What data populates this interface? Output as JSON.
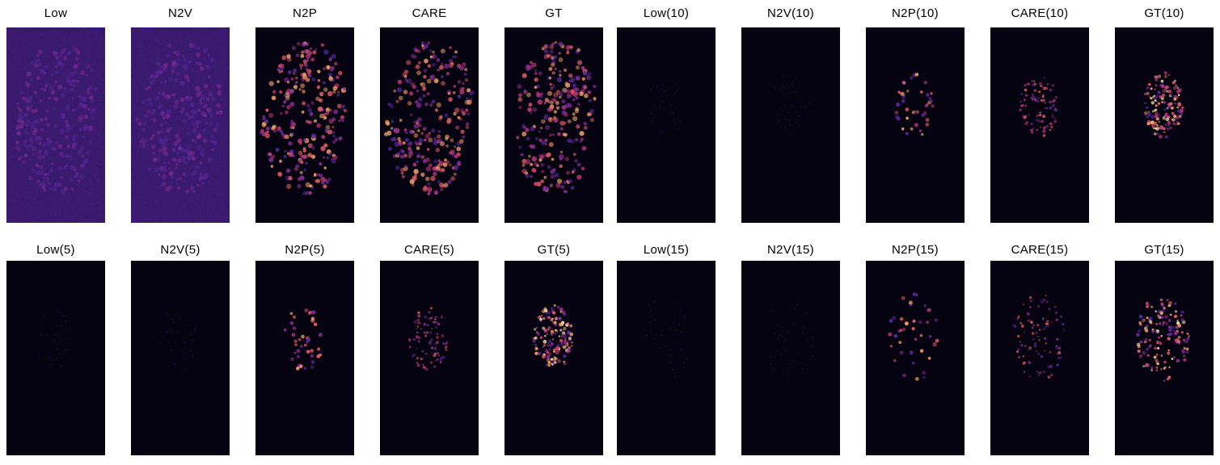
{
  "panels": [
    {
      "title": "Low",
      "kind": "low_full"
    },
    {
      "title": "N2V",
      "kind": "n2v_full"
    },
    {
      "title": "N2P",
      "kind": "n2p_full"
    },
    {
      "title": "CARE",
      "kind": "care_full"
    },
    {
      "title": "GT",
      "kind": "gt_full"
    },
    {
      "title": "Low(10)",
      "kind": "low_slice"
    },
    {
      "title": "N2V(10)",
      "kind": "n2v_slice"
    },
    {
      "title": "N2P(10)",
      "kind": "n2p_slice"
    },
    {
      "title": "CARE(10)",
      "kind": "care_slice"
    },
    {
      "title": "GT(10)",
      "kind": "gt_slice"
    },
    {
      "title": "Low(5)",
      "kind": "low_slice"
    },
    {
      "title": "N2V(5)",
      "kind": "n2v_slice"
    },
    {
      "title": "N2P(5)",
      "kind": "n2p_slice"
    },
    {
      "title": "CARE(5)",
      "kind": "care_slice"
    },
    {
      "title": "GT(5)",
      "kind": "gt_slice"
    },
    {
      "title": "Low(15)",
      "kind": "low_slice"
    },
    {
      "title": "N2V(15)",
      "kind": "n2v_slice"
    },
    {
      "title": "N2P(15)",
      "kind": "n2p_slice"
    },
    {
      "title": "CARE(15)",
      "kind": "care_slice"
    },
    {
      "title": "GT(15)",
      "kind": "gt_slice"
    }
  ],
  "colors": {
    "low_background": "#3a1a6e",
    "dark_background": "#05030f",
    "spot_dim": "#5a2a9e",
    "spot_mid": "#c0387a",
    "spot_bright": "#f9a26c"
  }
}
